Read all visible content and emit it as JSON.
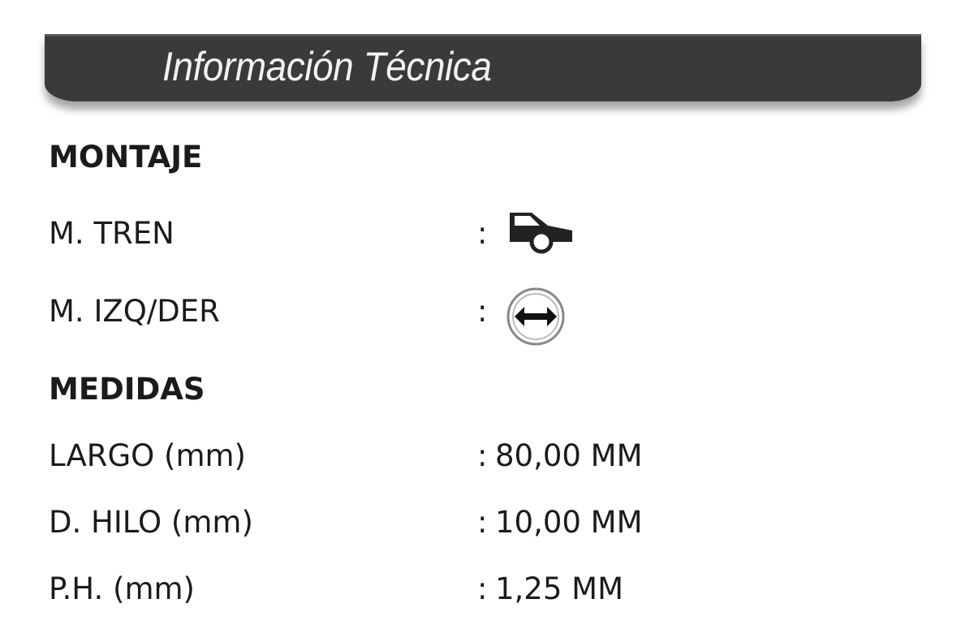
{
  "header": {
    "title": "Información Técnica"
  },
  "montaje": {
    "title": "MONTAJE",
    "rows": [
      {
        "label": "M. TREN",
        "icon": "car-rear-icon"
      },
      {
        "label": "M. IZQ/DER",
        "icon": "left-right-arrow-circle-icon"
      }
    ]
  },
  "medidas": {
    "title": "MEDIDAS",
    "rows": [
      {
        "label": "LARGO (mm)",
        "value": "80,00 MM"
      },
      {
        "label": "D. HILO (mm)",
        "value": "10,00 MM"
      },
      {
        "label": "P.H. (mm)",
        "value": "1,25 MM"
      }
    ]
  },
  "separator": ":"
}
